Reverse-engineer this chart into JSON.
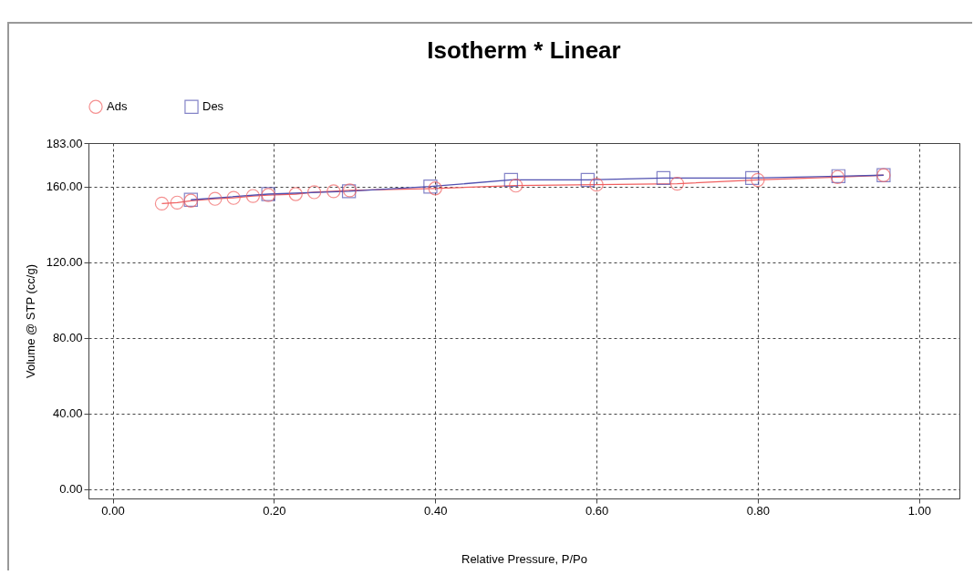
{
  "chart_data": {
    "type": "line",
    "title": "Isotherm *  Linear",
    "xlabel": "Relative Pressure, P/Po",
    "ylabel": "Volume @ STP (cc/g)",
    "xlim": [
      -0.03,
      1.05
    ],
    "ylim": [
      -5,
      183
    ],
    "xticks": [
      {
        "value": 0,
        "label": "0.00"
      },
      {
        "value": 0.2,
        "label": "0.20"
      },
      {
        "value": 0.4,
        "label": "0.40"
      },
      {
        "value": 0.6,
        "label": "0.60"
      },
      {
        "value": 0.8,
        "label": "0.80"
      },
      {
        "value": 1,
        "label": "1.00"
      }
    ],
    "yticks": [
      {
        "value": 0,
        "label": "0.00"
      },
      {
        "value": 40,
        "label": "40.00"
      },
      {
        "value": 80,
        "label": "80.00"
      },
      {
        "value": 120,
        "label": "120.00"
      },
      {
        "value": 160,
        "label": "160.00"
      },
      {
        "value": 183,
        "label": "183.00"
      }
    ],
    "grid": true,
    "legend": "top left",
    "series": [
      {
        "name": "Ads",
        "color": "#f06060",
        "marker": "circle",
        "x": [
          0.061,
          0.08,
          0.097,
          0.127,
          0.15,
          0.174,
          0.193,
          0.227,
          0.25,
          0.274,
          0.294,
          0.4,
          0.5,
          0.6,
          0.7,
          0.8,
          0.899,
          0.956
        ],
        "values": [
          151,
          151.5,
          152.5,
          153.5,
          154,
          155,
          155.5,
          156,
          157,
          157.5,
          158,
          159,
          160.5,
          161,
          161.5,
          163.5,
          165,
          166
        ]
      },
      {
        "name": "Des",
        "color": "#5050b0",
        "marker": "square",
        "x": [
          0.097,
          0.193,
          0.293,
          0.394,
          0.494,
          0.589,
          0.683,
          0.793,
          0.9,
          0.956
        ],
        "values": [
          153,
          156,
          157.5,
          160,
          163.5,
          163.5,
          164.5,
          164.5,
          165.5,
          166
        ]
      }
    ]
  }
}
